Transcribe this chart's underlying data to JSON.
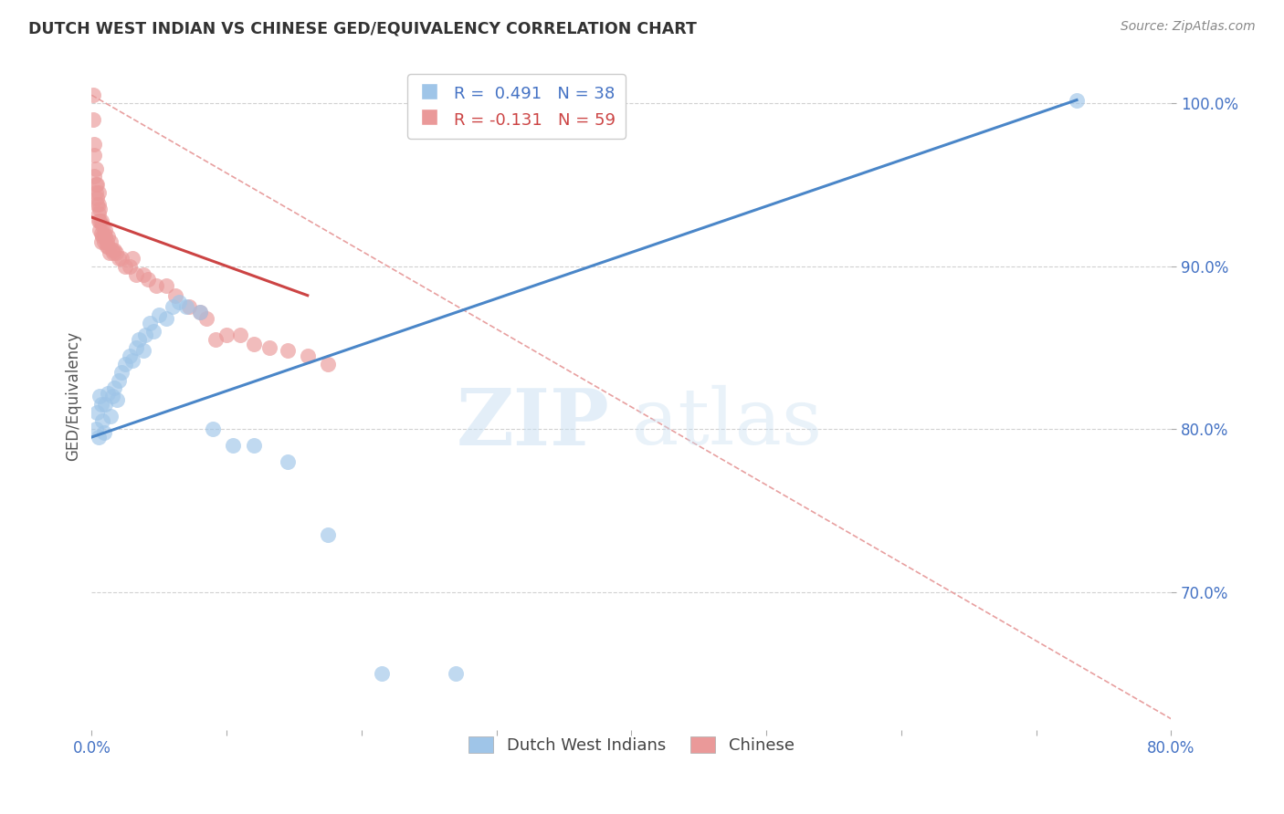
{
  "title": "DUTCH WEST INDIAN VS CHINESE GED/EQUIVALENCY CORRELATION CHART",
  "source": "Source: ZipAtlas.com",
  "ylabel": "GED/Equivalency",
  "xlim": [
    0.0,
    0.8
  ],
  "ylim": [
    0.615,
    1.025
  ],
  "yticks": [
    0.7,
    0.8,
    0.9,
    1.0
  ],
  "yticklabels": [
    "70.0%",
    "80.0%",
    "90.0%",
    "100.0%"
  ],
  "xtick_positions": [
    0.0,
    0.1,
    0.2,
    0.3,
    0.4,
    0.5,
    0.6,
    0.7,
    0.8
  ],
  "xtick_labels": [
    "0.0%",
    "",
    "",
    "",
    "",
    "",
    "",
    "",
    "80.0%"
  ],
  "blue_color": "#9fc5e8",
  "pink_color": "#ea9999",
  "blue_line_color": "#4a86c8",
  "pink_line_color": "#cc4444",
  "diag_line_color": "#e8a0a0",
  "legend_line1": "R =  0.491   N = 38",
  "legend_line2": "R = -0.131   N = 59",
  "legend_label_blue": "Dutch West Indians",
  "legend_label_pink": "Chinese",
  "watermark_zip": "ZIP",
  "watermark_atlas": "atlas",
  "blue_scatter_x": [
    0.003,
    0.004,
    0.005,
    0.006,
    0.007,
    0.008,
    0.009,
    0.01,
    0.012,
    0.014,
    0.015,
    0.017,
    0.019,
    0.02,
    0.022,
    0.025,
    0.028,
    0.03,
    0.033,
    0.035,
    0.038,
    0.04,
    0.043,
    0.046,
    0.05,
    0.055,
    0.06,
    0.065,
    0.07,
    0.08,
    0.09,
    0.105,
    0.12,
    0.145,
    0.175,
    0.215,
    0.27,
    0.73
  ],
  "blue_scatter_y": [
    0.8,
    0.81,
    0.795,
    0.82,
    0.815,
    0.805,
    0.798,
    0.815,
    0.822,
    0.808,
    0.82,
    0.825,
    0.818,
    0.83,
    0.835,
    0.84,
    0.845,
    0.842,
    0.85,
    0.855,
    0.848,
    0.858,
    0.865,
    0.86,
    0.87,
    0.868,
    0.875,
    0.878,
    0.875,
    0.872,
    0.8,
    0.79,
    0.79,
    0.78,
    0.735,
    0.65,
    0.65,
    1.002
  ],
  "pink_scatter_x": [
    0.001,
    0.001,
    0.002,
    0.002,
    0.002,
    0.003,
    0.003,
    0.003,
    0.004,
    0.004,
    0.004,
    0.005,
    0.005,
    0.005,
    0.005,
    0.006,
    0.006,
    0.006,
    0.007,
    0.007,
    0.007,
    0.008,
    0.008,
    0.009,
    0.009,
    0.01,
    0.01,
    0.011,
    0.011,
    0.012,
    0.012,
    0.013,
    0.014,
    0.015,
    0.016,
    0.017,
    0.018,
    0.02,
    0.022,
    0.025,
    0.028,
    0.03,
    0.033,
    0.038,
    0.042,
    0.048,
    0.055,
    0.062,
    0.072,
    0.08,
    0.085,
    0.092,
    0.1,
    0.11,
    0.12,
    0.132,
    0.145,
    0.16,
    0.175
  ],
  "pink_scatter_y": [
    1.005,
    0.99,
    0.975,
    0.968,
    0.955,
    0.96,
    0.95,
    0.945,
    0.95,
    0.942,
    0.938,
    0.945,
    0.938,
    0.932,
    0.928,
    0.935,
    0.928,
    0.922,
    0.928,
    0.92,
    0.915,
    0.925,
    0.918,
    0.92,
    0.915,
    0.922,
    0.918,
    0.915,
    0.912,
    0.918,
    0.912,
    0.908,
    0.915,
    0.91,
    0.908,
    0.91,
    0.908,
    0.905,
    0.905,
    0.9,
    0.9,
    0.905,
    0.895,
    0.895,
    0.892,
    0.888,
    0.888,
    0.882,
    0.875,
    0.872,
    0.868,
    0.855,
    0.858,
    0.858,
    0.852,
    0.85,
    0.848,
    0.845,
    0.84
  ],
  "blue_trend_x": [
    0.0,
    0.73
  ],
  "blue_trend_y": [
    0.795,
    1.002
  ],
  "pink_trend_x": [
    0.0,
    0.16
  ],
  "pink_trend_y": [
    0.93,
    0.882
  ],
  "diag_trend_x": [
    0.0,
    0.8
  ],
  "diag_trend_y": [
    1.005,
    0.622
  ]
}
